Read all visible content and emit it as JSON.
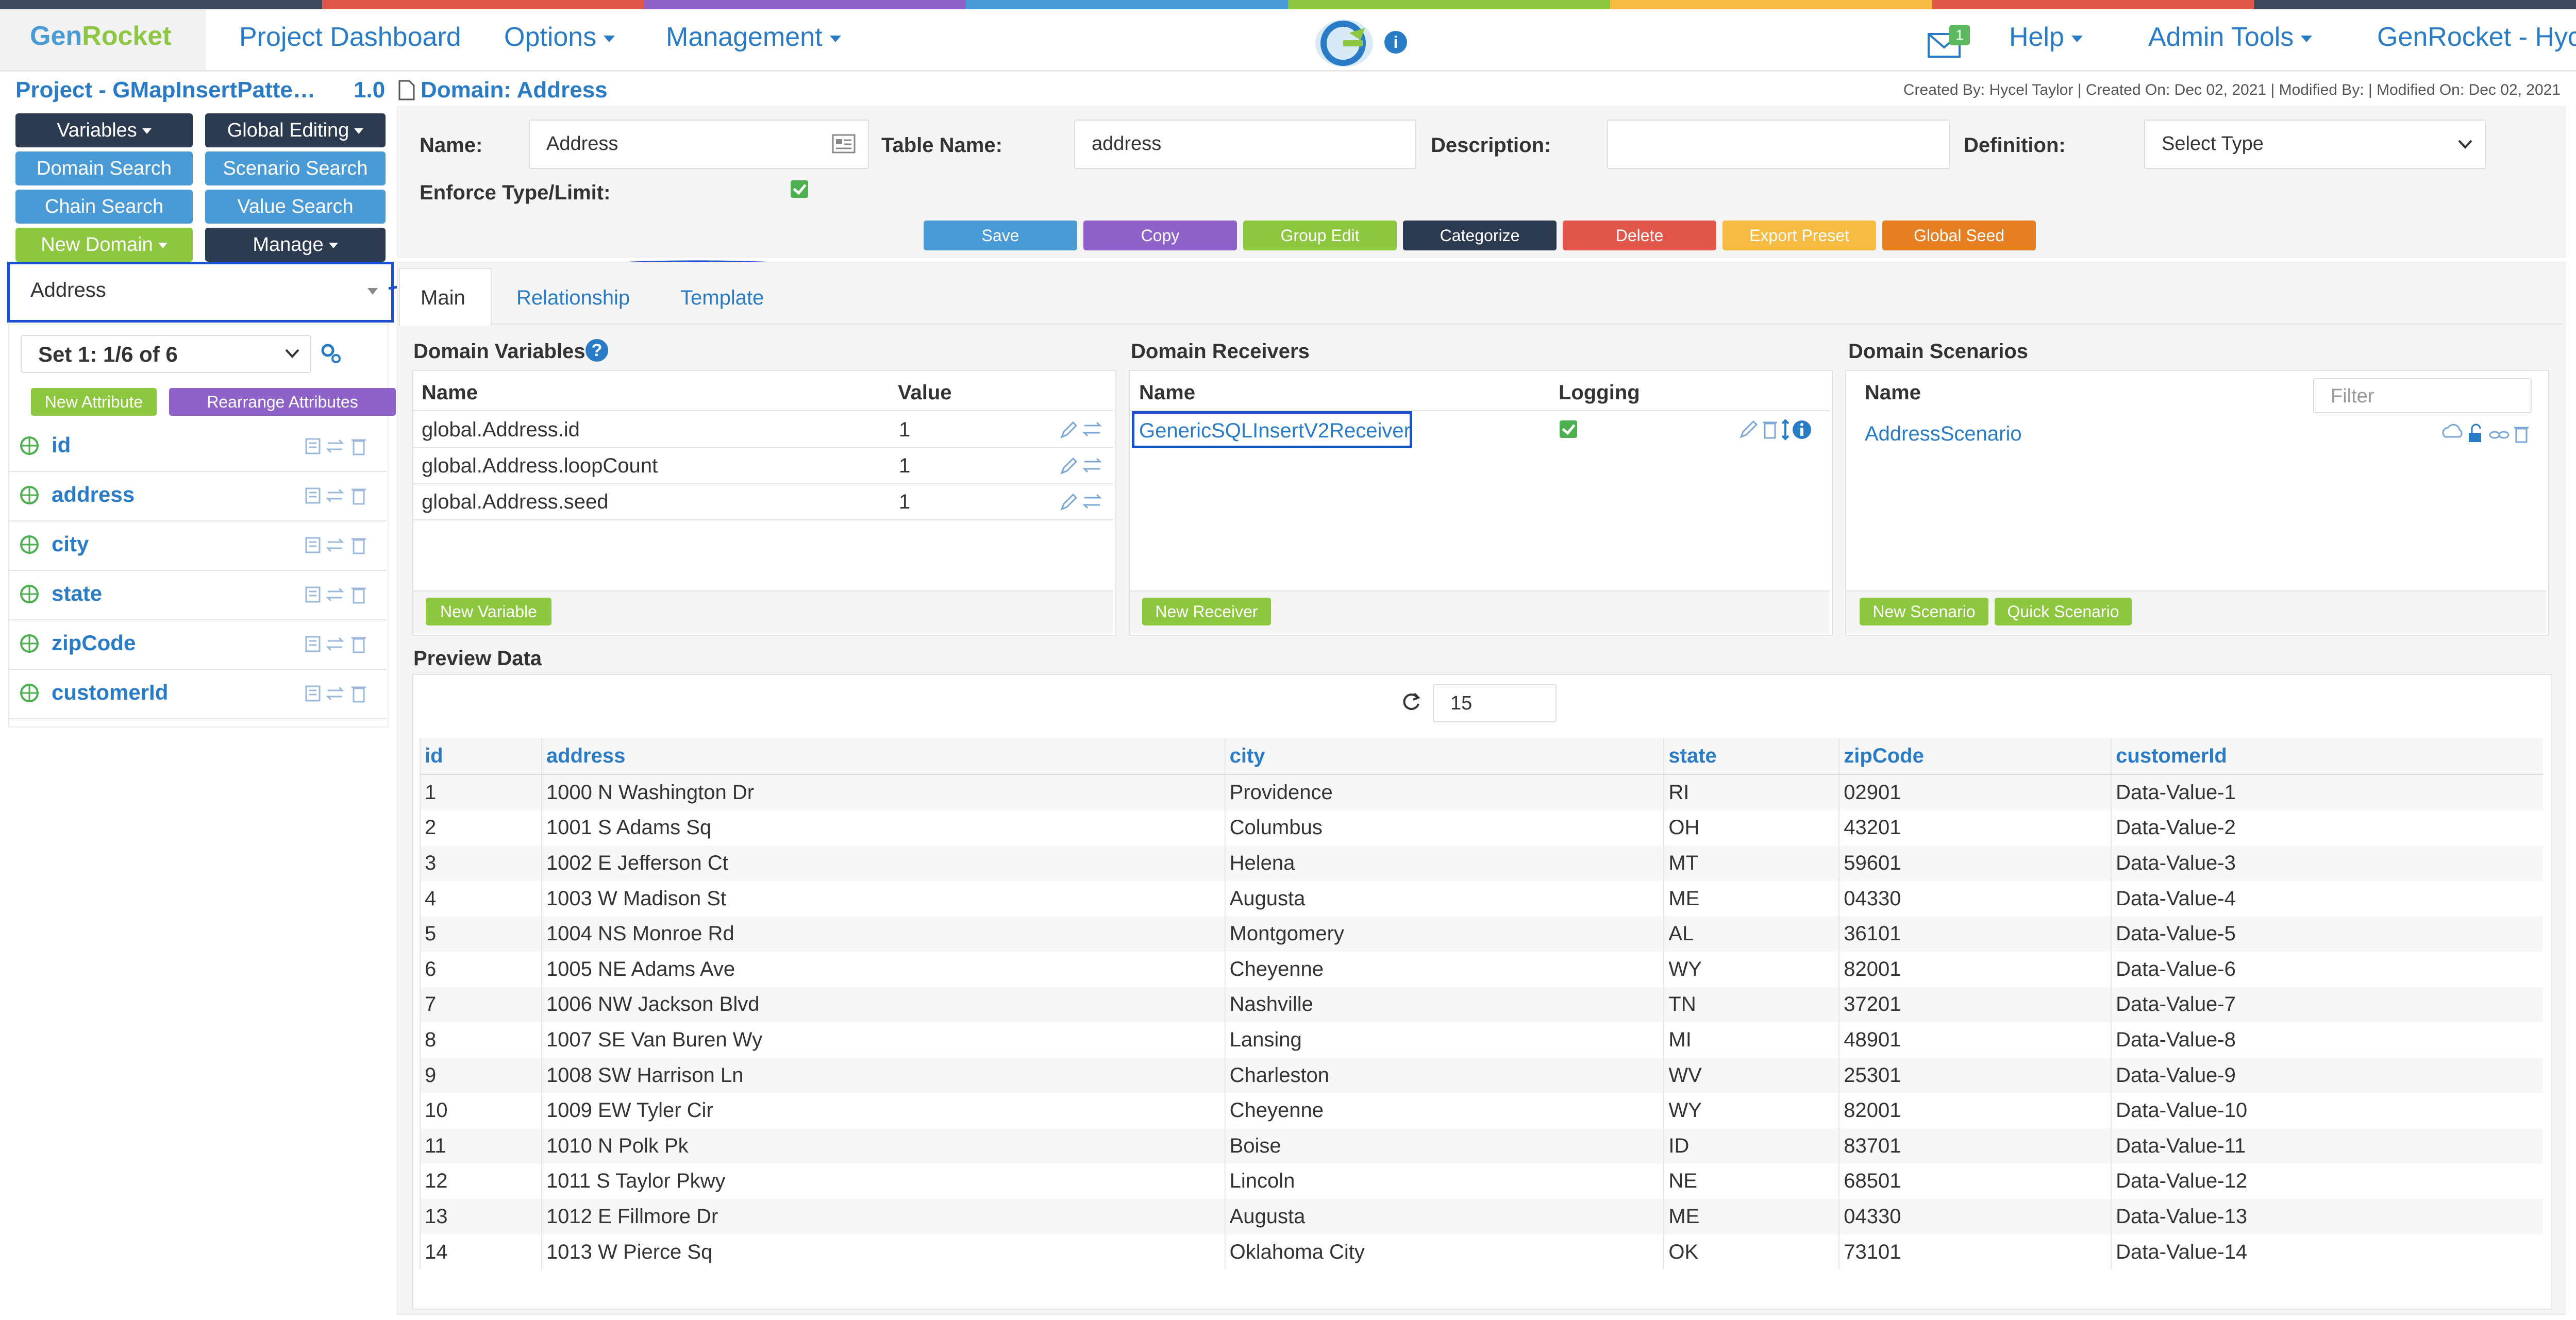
{
  "colors": {
    "stripe": [
      "#3d4a5c",
      "#e2574c",
      "#8e62c9",
      "#4a9ad6",
      "#8dc63f",
      "#f6bb42",
      "#e2574c",
      "#3d4a5c"
    ],
    "accent": "#2a7bc6",
    "save": "#4a9ad6",
    "copy": "#8e62c9",
    "group_edit": "#8dc63f",
    "categorize": "#2b3a4f",
    "delete": "#e2574c",
    "export_preset": "#f6bb42",
    "global_seed": "#e67e22"
  },
  "header": {
    "brand_gen": "Gen",
    "brand_rocket": "Rocket",
    "nav": {
      "project_dashboard": "Project Dashboard",
      "options": "Options",
      "management": "Management",
      "help": "Help",
      "admin_tools": "Admin Tools",
      "genrocket": "GenRocket - Hyc"
    },
    "mail_badge": "1",
    "info_icon": "i"
  },
  "left": {
    "project_title": "Project - GMapInsertPatte…",
    "project_version": "1.0",
    "buttons": {
      "variables": "Variables",
      "global_editing": "Global Editing",
      "domain_search": "Domain Search",
      "scenario_search": "Scenario Search",
      "chain_search": "Chain Search",
      "value_search": "Value Search",
      "new_domain": "New Domain",
      "manage": "Manage"
    },
    "domain_select": "Address",
    "set_select": "Set 1: 1/6 of 6",
    "new_attribute": "New Attribute",
    "rearrange_attributes": "Rearrange Attributes",
    "attributes": [
      "id",
      "address",
      "city",
      "state",
      "zipCode",
      "customerId"
    ]
  },
  "domain": {
    "title": "Domain: Address",
    "meta": "Created By: Hycel Taylor | Created On: Dec 02, 2021 | Modified By: | Modified On: Dec 02, 2021",
    "labels": {
      "name": "Name:",
      "table_name": "Table Name:",
      "description": "Description:",
      "definition": "Definition:",
      "enforce": "Enforce Type/Limit:"
    },
    "name_value": "Address",
    "table_name_value": "address",
    "description_value": "",
    "definition_value": "Select Type",
    "actions": {
      "save": "Save",
      "copy": "Copy",
      "group_edit": "Group Edit",
      "categorize": "Categorize",
      "delete": "Delete",
      "export_preset": "Export Preset",
      "global_seed": "Global Seed"
    }
  },
  "tabs": [
    "Main",
    "Relationship",
    "Template"
  ],
  "variables": {
    "title": "Domain Variables",
    "col_name": "Name",
    "col_value": "Value",
    "rows": [
      {
        "name": "global.Address.id",
        "value": "1"
      },
      {
        "name": "global.Address.loopCount",
        "value": "1"
      },
      {
        "name": "global.Address.seed",
        "value": "1"
      }
    ],
    "new_button": "New Variable"
  },
  "receivers": {
    "title": "Domain Receivers",
    "col_name": "Name",
    "col_logging": "Logging",
    "rows": [
      {
        "name": "GenericSQLInsertV2Receiver"
      }
    ],
    "new_button": "New Receiver"
  },
  "scenarios": {
    "title": "Domain Scenarios",
    "col_name": "Name",
    "filter_placeholder": "Filter",
    "rows": [
      {
        "name": "AddressScenario"
      }
    ],
    "new_button": "New Scenario",
    "quick_button": "Quick Scenario"
  },
  "preview": {
    "title": "Preview Data",
    "count": "15",
    "columns": [
      "id",
      "address",
      "city",
      "state",
      "zipCode",
      "customerId"
    ],
    "rows": [
      [
        "1",
        "1000 N Washington Dr",
        "Providence",
        "RI",
        "02901",
        "Data-Value-1"
      ],
      [
        "2",
        "1001 S Adams Sq",
        "Columbus",
        "OH",
        "43201",
        "Data-Value-2"
      ],
      [
        "3",
        "1002 E Jefferson Ct",
        "Helena",
        "MT",
        "59601",
        "Data-Value-3"
      ],
      [
        "4",
        "1003 W Madison St",
        "Augusta",
        "ME",
        "04330",
        "Data-Value-4"
      ],
      [
        "5",
        "1004 NS Monroe Rd",
        "Montgomery",
        "AL",
        "36101",
        "Data-Value-5"
      ],
      [
        "6",
        "1005 NE Adams Ave",
        "Cheyenne",
        "WY",
        "82001",
        "Data-Value-6"
      ],
      [
        "7",
        "1006 NW Jackson Blvd",
        "Nashville",
        "TN",
        "37201",
        "Data-Value-7"
      ],
      [
        "8",
        "1007 SE Van Buren Wy",
        "Lansing",
        "MI",
        "48901",
        "Data-Value-8"
      ],
      [
        "9",
        "1008 SW Harrison Ln",
        "Charleston",
        "WV",
        "25301",
        "Data-Value-9"
      ],
      [
        "10",
        "1009 EW Tyler Cir",
        "Cheyenne",
        "WY",
        "82001",
        "Data-Value-10"
      ],
      [
        "11",
        "1010 N Polk Pk",
        "Boise",
        "ID",
        "83701",
        "Data-Value-11"
      ],
      [
        "12",
        "1011 S Taylor Pkwy",
        "Lincoln",
        "NE",
        "68501",
        "Data-Value-12"
      ],
      [
        "13",
        "1012 E Fillmore Dr",
        "Augusta",
        "ME",
        "04330",
        "Data-Value-13"
      ],
      [
        "14",
        "1013 W Pierce Sq",
        "Oklahoma City",
        "OK",
        "73101",
        "Data-Value-14"
      ]
    ]
  }
}
